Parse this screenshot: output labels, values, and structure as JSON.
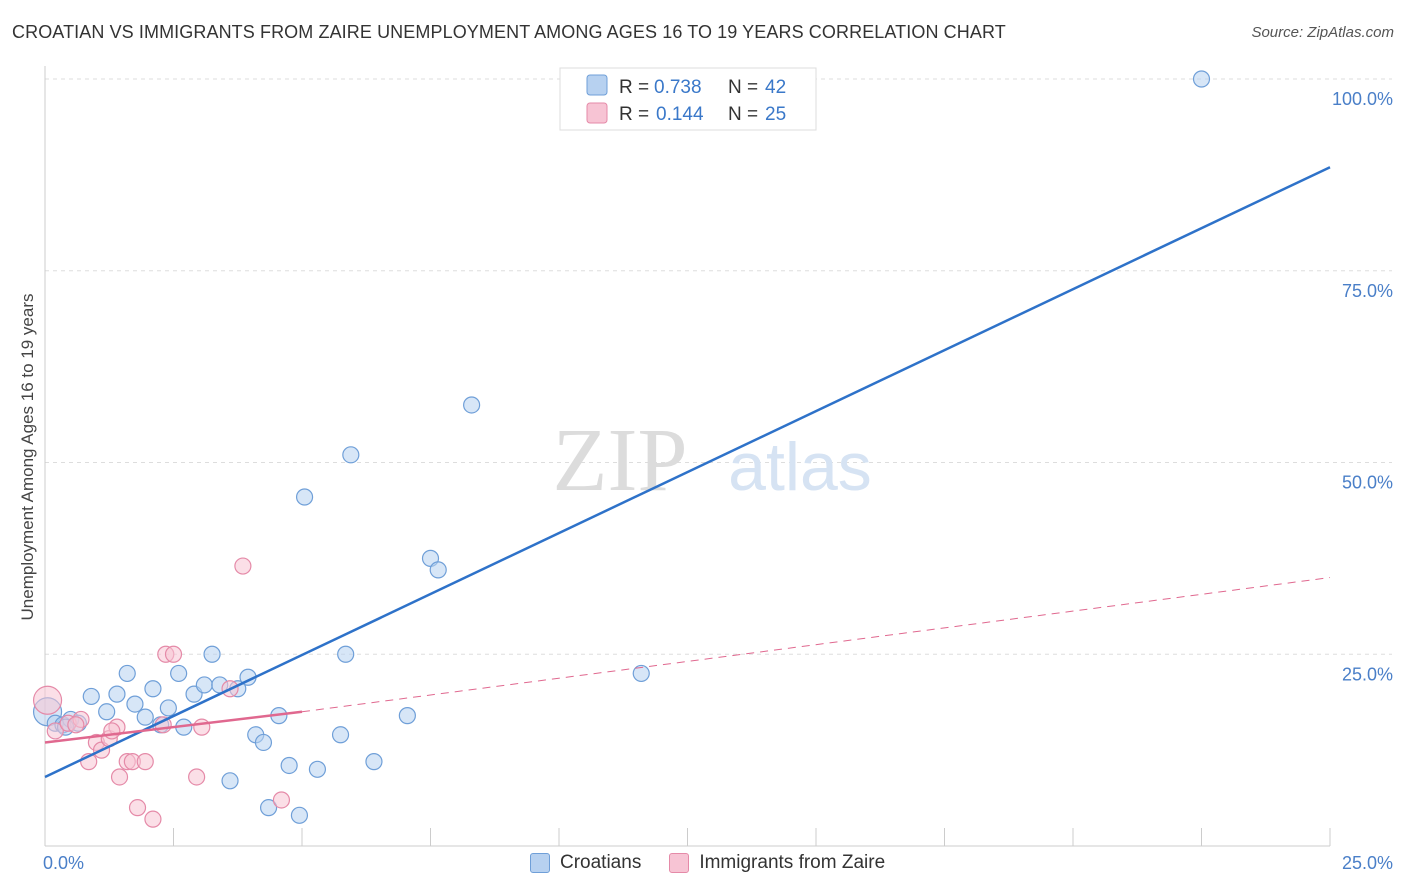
{
  "title": "CROATIAN VS IMMIGRANTS FROM ZAIRE UNEMPLOYMENT AMONG AGES 16 TO 19 YEARS CORRELATION CHART",
  "source": "Source: ZipAtlas.com",
  "watermark": {
    "zip": "ZIP",
    "atlas": "atlas"
  },
  "colors": {
    "blue_fill": "#b7d1f0",
    "blue_stroke": "#6f9fd8",
    "blue_line": "#2e72c9",
    "pink_fill": "#f7c4d4",
    "pink_stroke": "#e58aa8",
    "pink_line": "#e0688f",
    "tick_text": "#4a7fc8",
    "grid": "#dddddd"
  },
  "chart_data": {
    "type": "scatter",
    "title": "CROATIAN VS IMMIGRANTS FROM ZAIRE UNEMPLOYMENT AMONG AGES 16 TO 19 YEARS CORRELATION CHART",
    "xlabel": "",
    "ylabel": "Unemployment Among Ages 16 to 19 years",
    "xlim": [
      0,
      25
    ],
    "ylim": [
      0,
      100
    ],
    "x_tick_labels": [
      "0.0%",
      "25.0%"
    ],
    "y_ticks": [
      25,
      50,
      75,
      100
    ],
    "y_tick_labels": [
      "25.0%",
      "50.0%",
      "75.0%",
      "100.0%"
    ],
    "grid": true,
    "legend": {
      "r_label": "R =",
      "n_label": "N =",
      "entries": [
        {
          "name": "Croatians",
          "r": "0.738",
          "n": "42"
        },
        {
          "name": "Immigrants from Zaire",
          "r": "0.144",
          "n": "25"
        }
      ]
    },
    "series": [
      {
        "name": "Croatians",
        "points": [
          [
            0.05,
            17.5
          ],
          [
            0.2,
            16
          ],
          [
            0.35,
            15.8
          ],
          [
            0.5,
            16.5
          ],
          [
            0.65,
            16
          ],
          [
            0.9,
            19.5
          ],
          [
            1.2,
            17.5
          ],
          [
            1.4,
            19.8
          ],
          [
            1.6,
            22.5
          ],
          [
            1.75,
            18.5
          ],
          [
            1.95,
            16.8
          ],
          [
            2.1,
            20.5
          ],
          [
            2.25,
            15.8
          ],
          [
            2.4,
            18
          ],
          [
            2.6,
            22.5
          ],
          [
            2.7,
            15.5
          ],
          [
            2.9,
            19.8
          ],
          [
            3.1,
            21
          ],
          [
            3.25,
            25
          ],
          [
            3.4,
            21
          ],
          [
            3.6,
            8.5
          ],
          [
            3.75,
            20.5
          ],
          [
            3.95,
            22
          ],
          [
            4.1,
            14.5
          ],
          [
            4.25,
            13.5
          ],
          [
            4.35,
            5
          ],
          [
            4.55,
            17
          ],
          [
            4.75,
            10.5
          ],
          [
            4.95,
            4
          ],
          [
            5.05,
            45.5
          ],
          [
            5.3,
            10
          ],
          [
            5.75,
            14.5
          ],
          [
            5.85,
            25
          ],
          [
            5.95,
            51
          ],
          [
            6.4,
            11
          ],
          [
            7.05,
            17
          ],
          [
            7.5,
            37.5
          ],
          [
            7.65,
            36
          ],
          [
            8.3,
            57.5
          ],
          [
            11.6,
            22.5
          ],
          [
            22.5,
            100
          ],
          [
            0.4,
            15.5
          ]
        ],
        "trend": {
          "x": [
            0,
            25
          ],
          "y": [
            9,
            88.5
          ]
        }
      },
      {
        "name": "Immigrants from Zaire",
        "points": [
          [
            0.05,
            19
          ],
          [
            0.2,
            15
          ],
          [
            0.45,
            16
          ],
          [
            0.7,
            16.5
          ],
          [
            0.85,
            11
          ],
          [
            1.0,
            13.5
          ],
          [
            1.1,
            12.5
          ],
          [
            1.25,
            14
          ],
          [
            1.4,
            15.5
          ],
          [
            1.45,
            9
          ],
          [
            1.6,
            11
          ],
          [
            1.7,
            11
          ],
          [
            1.8,
            5
          ],
          [
            1.95,
            11
          ],
          [
            2.1,
            3.5
          ],
          [
            2.3,
            15.8
          ],
          [
            2.35,
            25
          ],
          [
            2.5,
            25
          ],
          [
            2.95,
            9
          ],
          [
            3.05,
            15.5
          ],
          [
            3.6,
            20.5
          ],
          [
            3.85,
            36.5
          ],
          [
            4.6,
            6
          ],
          [
            0.6,
            15.8
          ],
          [
            1.3,
            15
          ]
        ],
        "trend_solid": {
          "x": [
            0,
            5
          ],
          "y": [
            13.5,
            17.5
          ]
        },
        "trend_dashed": {
          "x": [
            5,
            25
          ],
          "y": [
            17.5,
            35
          ]
        }
      }
    ]
  }
}
